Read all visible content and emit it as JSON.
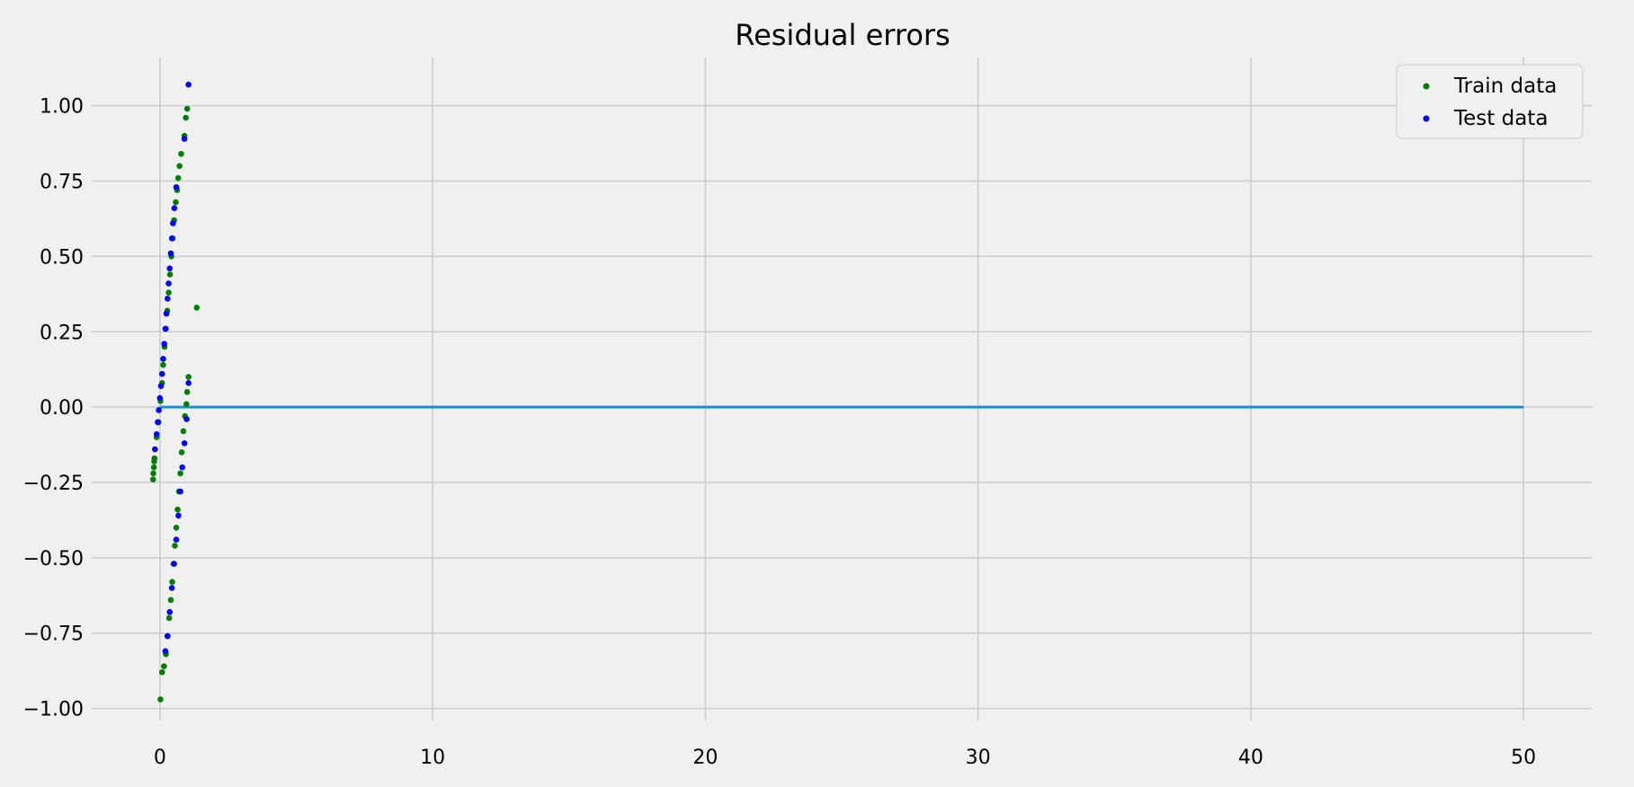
{
  "chart_data": {
    "type": "scatter",
    "title": "Residual errors",
    "xlabel": "",
    "ylabel": "",
    "xlim": [
      -2.5,
      52.5
    ],
    "ylim": [
      -1.04,
      1.16
    ],
    "xticks": [
      0,
      10,
      20,
      30,
      40,
      50
    ],
    "yticks": [
      -1.0,
      -0.75,
      -0.5,
      -0.25,
      0.0,
      0.25,
      0.5,
      0.75,
      1.0
    ],
    "xtick_labels": [
      "0",
      "10",
      "20",
      "30",
      "40",
      "50"
    ],
    "ytick_labels": [
      "−1.00",
      "−0.75",
      "−0.50",
      "−0.25",
      "0.00",
      "0.25",
      "0.50",
      "0.75",
      "1.00"
    ],
    "grid": true,
    "legend_position": "top-right",
    "reference_line": {
      "y": 0,
      "x_start": 0,
      "x_end": 50,
      "color": "#1f8dd6"
    },
    "series": [
      {
        "name": "Train data",
        "color": "#008000",
        "points": [
          [
            -0.25,
            -0.24
          ],
          [
            -0.24,
            -0.22
          ],
          [
            -0.22,
            -0.2
          ],
          [
            -0.21,
            -0.18
          ],
          [
            -0.2,
            -0.17
          ],
          [
            -0.12,
            -0.1
          ],
          [
            -0.05,
            -0.05
          ],
          [
            0.02,
            0.02
          ],
          [
            0.08,
            0.08
          ],
          [
            0.12,
            0.14
          ],
          [
            0.17,
            0.2
          ],
          [
            0.22,
            0.26
          ],
          [
            0.27,
            0.32
          ],
          [
            0.32,
            0.38
          ],
          [
            0.37,
            0.44
          ],
          [
            0.42,
            0.5
          ],
          [
            0.47,
            0.56
          ],
          [
            0.52,
            0.62
          ],
          [
            0.58,
            0.68
          ],
          [
            0.63,
            0.72
          ],
          [
            0.67,
            0.76
          ],
          [
            0.72,
            0.8
          ],
          [
            0.78,
            0.84
          ],
          [
            0.9,
            0.9
          ],
          [
            0.95,
            0.96
          ],
          [
            1.0,
            0.99
          ],
          [
            1.35,
            0.33
          ],
          [
            1.05,
            0.1
          ],
          [
            1.0,
            0.05
          ],
          [
            0.97,
            0.01
          ],
          [
            0.92,
            -0.03
          ],
          [
            0.86,
            -0.08
          ],
          [
            0.8,
            -0.15
          ],
          [
            0.75,
            -0.22
          ],
          [
            0.7,
            -0.28
          ],
          [
            0.65,
            -0.34
          ],
          [
            0.6,
            -0.4
          ],
          [
            0.55,
            -0.46
          ],
          [
            0.5,
            -0.52
          ],
          [
            0.45,
            -0.58
          ],
          [
            0.4,
            -0.64
          ],
          [
            0.34,
            -0.7
          ],
          [
            0.28,
            -0.76
          ],
          [
            0.22,
            -0.82
          ],
          [
            0.15,
            -0.86
          ],
          [
            0.08,
            -0.88
          ],
          [
            0.02,
            -0.97
          ]
        ]
      },
      {
        "name": "Test data",
        "color": "#0000ff",
        "points": [
          [
            -0.18,
            -0.14
          ],
          [
            -0.12,
            -0.09
          ],
          [
            -0.08,
            -0.05
          ],
          [
            -0.04,
            -0.01
          ],
          [
            0.0,
            0.03
          ],
          [
            0.04,
            0.07
          ],
          [
            0.08,
            0.11
          ],
          [
            0.12,
            0.16
          ],
          [
            0.16,
            0.21
          ],
          [
            0.2,
            0.26
          ],
          [
            0.24,
            0.31
          ],
          [
            0.28,
            0.36
          ],
          [
            0.32,
            0.41
          ],
          [
            0.36,
            0.46
          ],
          [
            0.4,
            0.51
          ],
          [
            0.44,
            0.56
          ],
          [
            0.48,
            0.61
          ],
          [
            0.53,
            0.66
          ],
          [
            0.6,
            0.73
          ],
          [
            0.9,
            0.89
          ],
          [
            1.05,
            1.07
          ],
          [
            1.05,
            0.08
          ],
          [
            0.98,
            -0.04
          ],
          [
            0.9,
            -0.12
          ],
          [
            0.82,
            -0.2
          ],
          [
            0.75,
            -0.28
          ],
          [
            0.68,
            -0.36
          ],
          [
            0.6,
            -0.44
          ],
          [
            0.52,
            -0.52
          ],
          [
            0.44,
            -0.6
          ],
          [
            0.36,
            -0.68
          ],
          [
            0.28,
            -0.76
          ],
          [
            0.2,
            -0.81
          ]
        ]
      }
    ]
  }
}
